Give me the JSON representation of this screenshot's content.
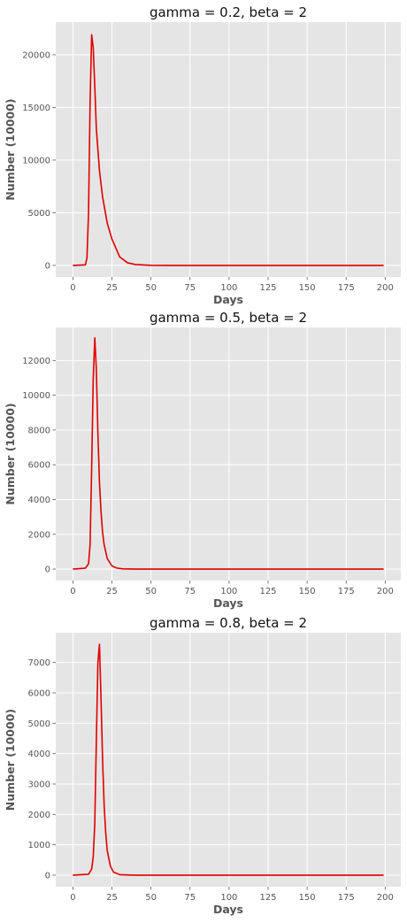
{
  "chart_data": [
    {
      "type": "line",
      "title": "gamma = 0.2, beta = 2",
      "xlabel": "Days",
      "ylabel": "Number (10000)",
      "xlim": [
        -11,
        210
      ],
      "ylim": [
        -1100,
        23100
      ],
      "xticks": [
        0,
        25,
        50,
        75,
        100,
        125,
        150,
        175,
        200
      ],
      "yticks": [
        0,
        5000,
        10000,
        15000,
        20000
      ],
      "grid": true,
      "series": [
        {
          "color": "#e00000",
          "x": [
            0,
            8,
            9,
            10,
            11,
            12,
            13,
            14,
            15,
            17,
            19,
            22,
            25,
            30,
            35,
            40,
            50,
            60,
            100,
            150,
            199
          ],
          "y": [
            0,
            50,
            700,
            5000,
            15500,
            21900,
            20700,
            17000,
            13000,
            9000,
            6500,
            4000,
            2500,
            800,
            250,
            80,
            10,
            0,
            0,
            0,
            0
          ]
        }
      ]
    },
    {
      "type": "line",
      "title": "gamma = 0.5, beta = 2",
      "xlabel": "Days",
      "ylabel": "Number (10000)",
      "xlim": [
        -11,
        210
      ],
      "ylim": [
        -660,
        13900
      ],
      "xticks": [
        0,
        25,
        50,
        75,
        100,
        125,
        150,
        175,
        200
      ],
      "yticks": [
        0,
        2000,
        4000,
        6000,
        8000,
        10000,
        12000
      ],
      "grid": true,
      "series": [
        {
          "color": "#e00000",
          "x": [
            0,
            8,
            10,
            11,
            12,
            13,
            14,
            15,
            16,
            17,
            18,
            19,
            20,
            22,
            25,
            28,
            32,
            40,
            100,
            150,
            199
          ],
          "y": [
            0,
            50,
            300,
            1400,
            5800,
            10900,
            13300,
            11500,
            7800,
            5000,
            3300,
            2100,
            1400,
            600,
            180,
            60,
            10,
            0,
            0,
            0,
            0
          ]
        }
      ]
    },
    {
      "type": "line",
      "title": "gamma = 0.8, beta = 2",
      "xlabel": "Days",
      "ylabel": "Number (10000)",
      "xlim": [
        -11,
        210
      ],
      "ylim": [
        -380,
        7980
      ],
      "xticks": [
        0,
        25,
        50,
        75,
        100,
        125,
        150,
        175,
        200
      ],
      "yticks": [
        0,
        1000,
        2000,
        3000,
        4000,
        5000,
        6000,
        7000
      ],
      "grid": true,
      "series": [
        {
          "color": "#e00000",
          "x": [
            0,
            10,
            12,
            13,
            14,
            15,
            16,
            17,
            18,
            19,
            20,
            21,
            22,
            24,
            26,
            30,
            40,
            100,
            150,
            199
          ],
          "y": [
            0,
            30,
            200,
            600,
            1700,
            4400,
            7000,
            7600,
            5800,
            3800,
            2300,
            1400,
            800,
            300,
            100,
            15,
            0,
            0,
            0,
            0
          ]
        }
      ]
    }
  ]
}
